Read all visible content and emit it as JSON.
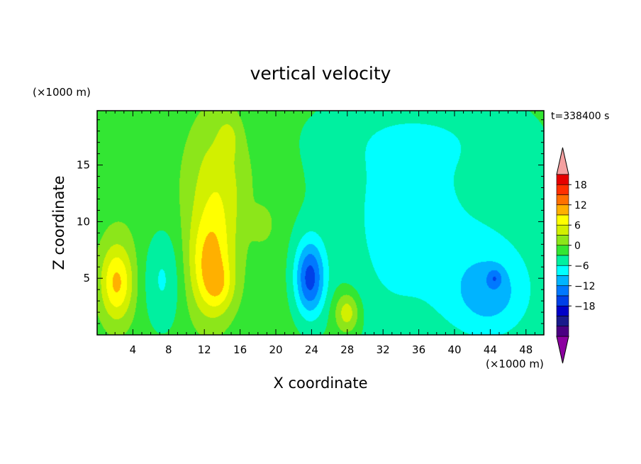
{
  "chart_data": {
    "type": "heatmap",
    "title": "vertical velocity",
    "xlabel": "X coordinate",
    "ylabel": "Z coordinate",
    "x_unit": "(×1000 m)",
    "y_unit": "(×1000 m)",
    "time_label": "t=338400 s",
    "xlim": [
      0,
      50
    ],
    "ylim": [
      0,
      19.8
    ],
    "x_ticks": [
      "4",
      "8",
      "12",
      "16",
      "20",
      "24",
      "28",
      "32",
      "36",
      "40",
      "44",
      "48"
    ],
    "y_ticks": [
      "5",
      "10",
      "15"
    ],
    "colorbar": {
      "labels": [
        "18",
        "12",
        "6",
        "0",
        "−6",
        "−12",
        "−18"
      ],
      "levels": [
        -21,
        -18,
        -15,
        -12,
        -9,
        -6,
        -3,
        0,
        3,
        6,
        9,
        12,
        15,
        18,
        21
      ],
      "colors": [
        "#4b0082",
        "#1a1a8c",
        "#0000c8",
        "#0040e8",
        "#0078ff",
        "#00b4ff",
        "#00ffff",
        "#00f0a0",
        "#33e633",
        "#8ce61a",
        "#d2f000",
        "#ffff00",
        "#ffb000",
        "#ff7000",
        "#ff3000",
        "#e60000"
      ],
      "over_color": "#f4a0a0",
      "under_color": "#8c00a0"
    },
    "background_value": 1.5,
    "features": [
      {
        "x": 2.2,
        "z": 4.6,
        "sx": 1.3,
        "sz": 2.4,
        "amp": 11
      },
      {
        "x": 12.6,
        "z": 6.0,
        "sx": 1.7,
        "sz": 3.2,
        "amp": 10
      },
      {
        "x": 13.8,
        "z": 4.2,
        "sx": 1.2,
        "sz": 1.5,
        "amp": 4
      },
      {
        "x": 13.5,
        "z": 13.0,
        "sx": 2.4,
        "sz": 4.5,
        "amp": 6.5
      },
      {
        "x": 14.7,
        "z": 17.5,
        "sx": 0.8,
        "sz": 1.2,
        "amp": 3
      },
      {
        "x": 28.0,
        "z": 2.0,
        "sx": 1.0,
        "sz": 1.3,
        "amp": 8
      },
      {
        "x": 23.8,
        "z": 5.0,
        "sx": 1.2,
        "sz": 2.4,
        "amp": -14
      },
      {
        "x": 7.3,
        "z": 5.0,
        "sx": 1.5,
        "sz": 3.2,
        "amp": -5
      },
      {
        "x": 32.5,
        "z": 4.5,
        "sx": 4.5,
        "sz": 6.0,
        "amp": -3
      },
      {
        "x": 44.0,
        "z": 3.5,
        "sx": 3.5,
        "sz": 3.0,
        "amp": -7
      },
      {
        "x": 44.5,
        "z": 5.0,
        "sx": 0.6,
        "sz": 0.6,
        "amp": -5
      },
      {
        "x": 41.5,
        "z": 10.0,
        "sx": 7.0,
        "sz": 7.0,
        "amp": -3.5
      },
      {
        "x": 31.0,
        "z": 13.5,
        "sx": 6.0,
        "sz": 5.0,
        "amp": -2.5
      },
      {
        "x": 36.0,
        "z": 18.0,
        "sx": 9.0,
        "sz": 2.5,
        "amp": -2.2
      },
      {
        "x": 4.0,
        "z": 12.0,
        "sx": 3.0,
        "sz": 5.0,
        "amp": 0.8
      },
      {
        "x": 18.5,
        "z": 9.8,
        "sx": 0.8,
        "sz": 1.0,
        "amp": 4
      }
    ]
  }
}
